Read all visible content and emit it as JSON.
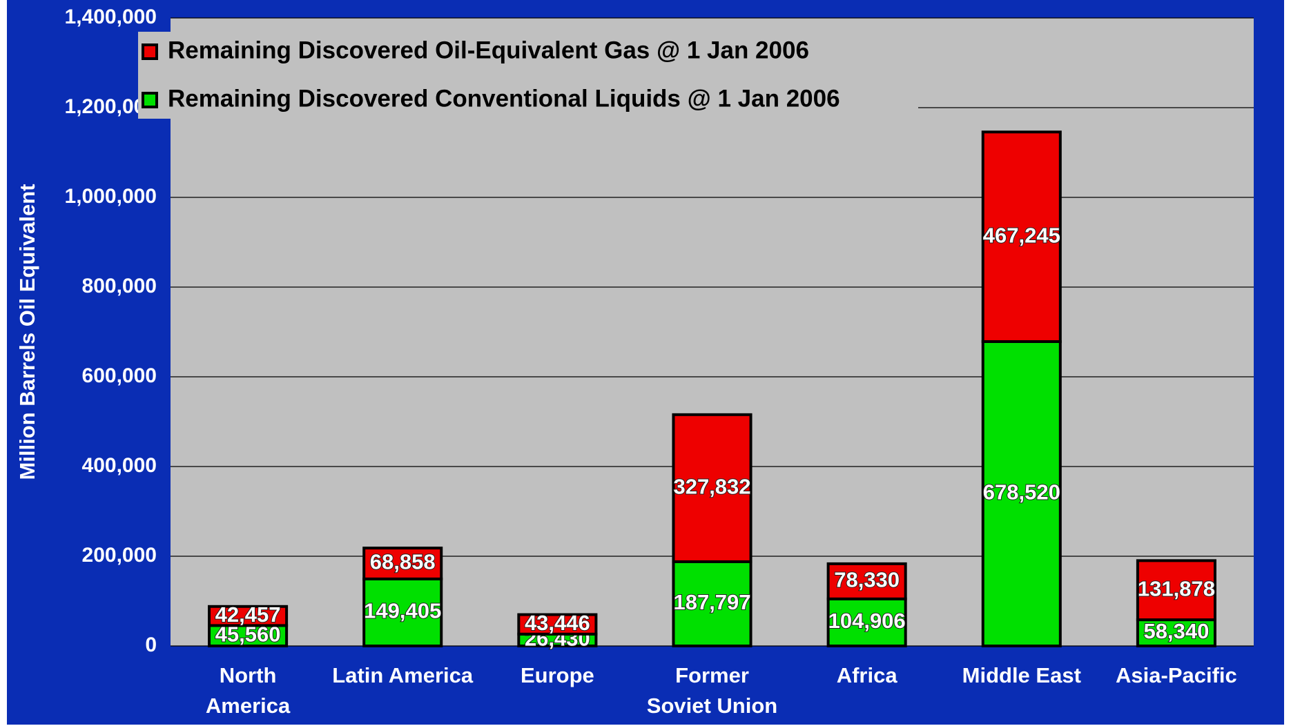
{
  "chart_data": {
    "type": "stacked_bar",
    "y_label": "Million Barrels Oil Equivalent",
    "categories": [
      "North\nAmerica",
      "Latin America",
      "Europe",
      "Former\nSoviet Union",
      "Africa",
      "Middle East",
      "Asia-Pacific"
    ],
    "series": [
      {
        "name": "Remaining Discovered Conventional Liquids @ 1 Jan 2006",
        "color": "#00e000",
        "values": [
          45560,
          149405,
          26430,
          187797,
          104906,
          678520,
          58340
        ],
        "value_labels": [
          "45,560",
          "149,405",
          "26,430",
          "187,797",
          "104,906",
          "678,520",
          "58,340"
        ]
      },
      {
        "name": "Remaining Discovered Oil-Equivalent Gas @ 1 Jan 2006",
        "color": "#ee0000",
        "values": [
          42457,
          68858,
          43446,
          327832,
          78330,
          467245,
          131878
        ],
        "value_labels": [
          "42,457",
          "68,858",
          "43,446",
          "327,832",
          "78,330",
          "467,245",
          "131,878"
        ]
      }
    ],
    "ylim": [
      0,
      1400000
    ],
    "yticks": [
      0,
      {
        "value": 200000,
        "label": "200,000"
      },
      {
        "value": 400000,
        "label": "400,000"
      },
      {
        "value": 600000,
        "label": "600,000"
      },
      {
        "value": 800000,
        "label": "800,000"
      },
      {
        "value": 1000000,
        "label": "1,000,000"
      },
      {
        "value": 1200000,
        "label": "1,200,000"
      },
      {
        "value": 1400000,
        "label": "1,400,000"
      }
    ],
    "grid": true,
    "legend": "top-left"
  }
}
